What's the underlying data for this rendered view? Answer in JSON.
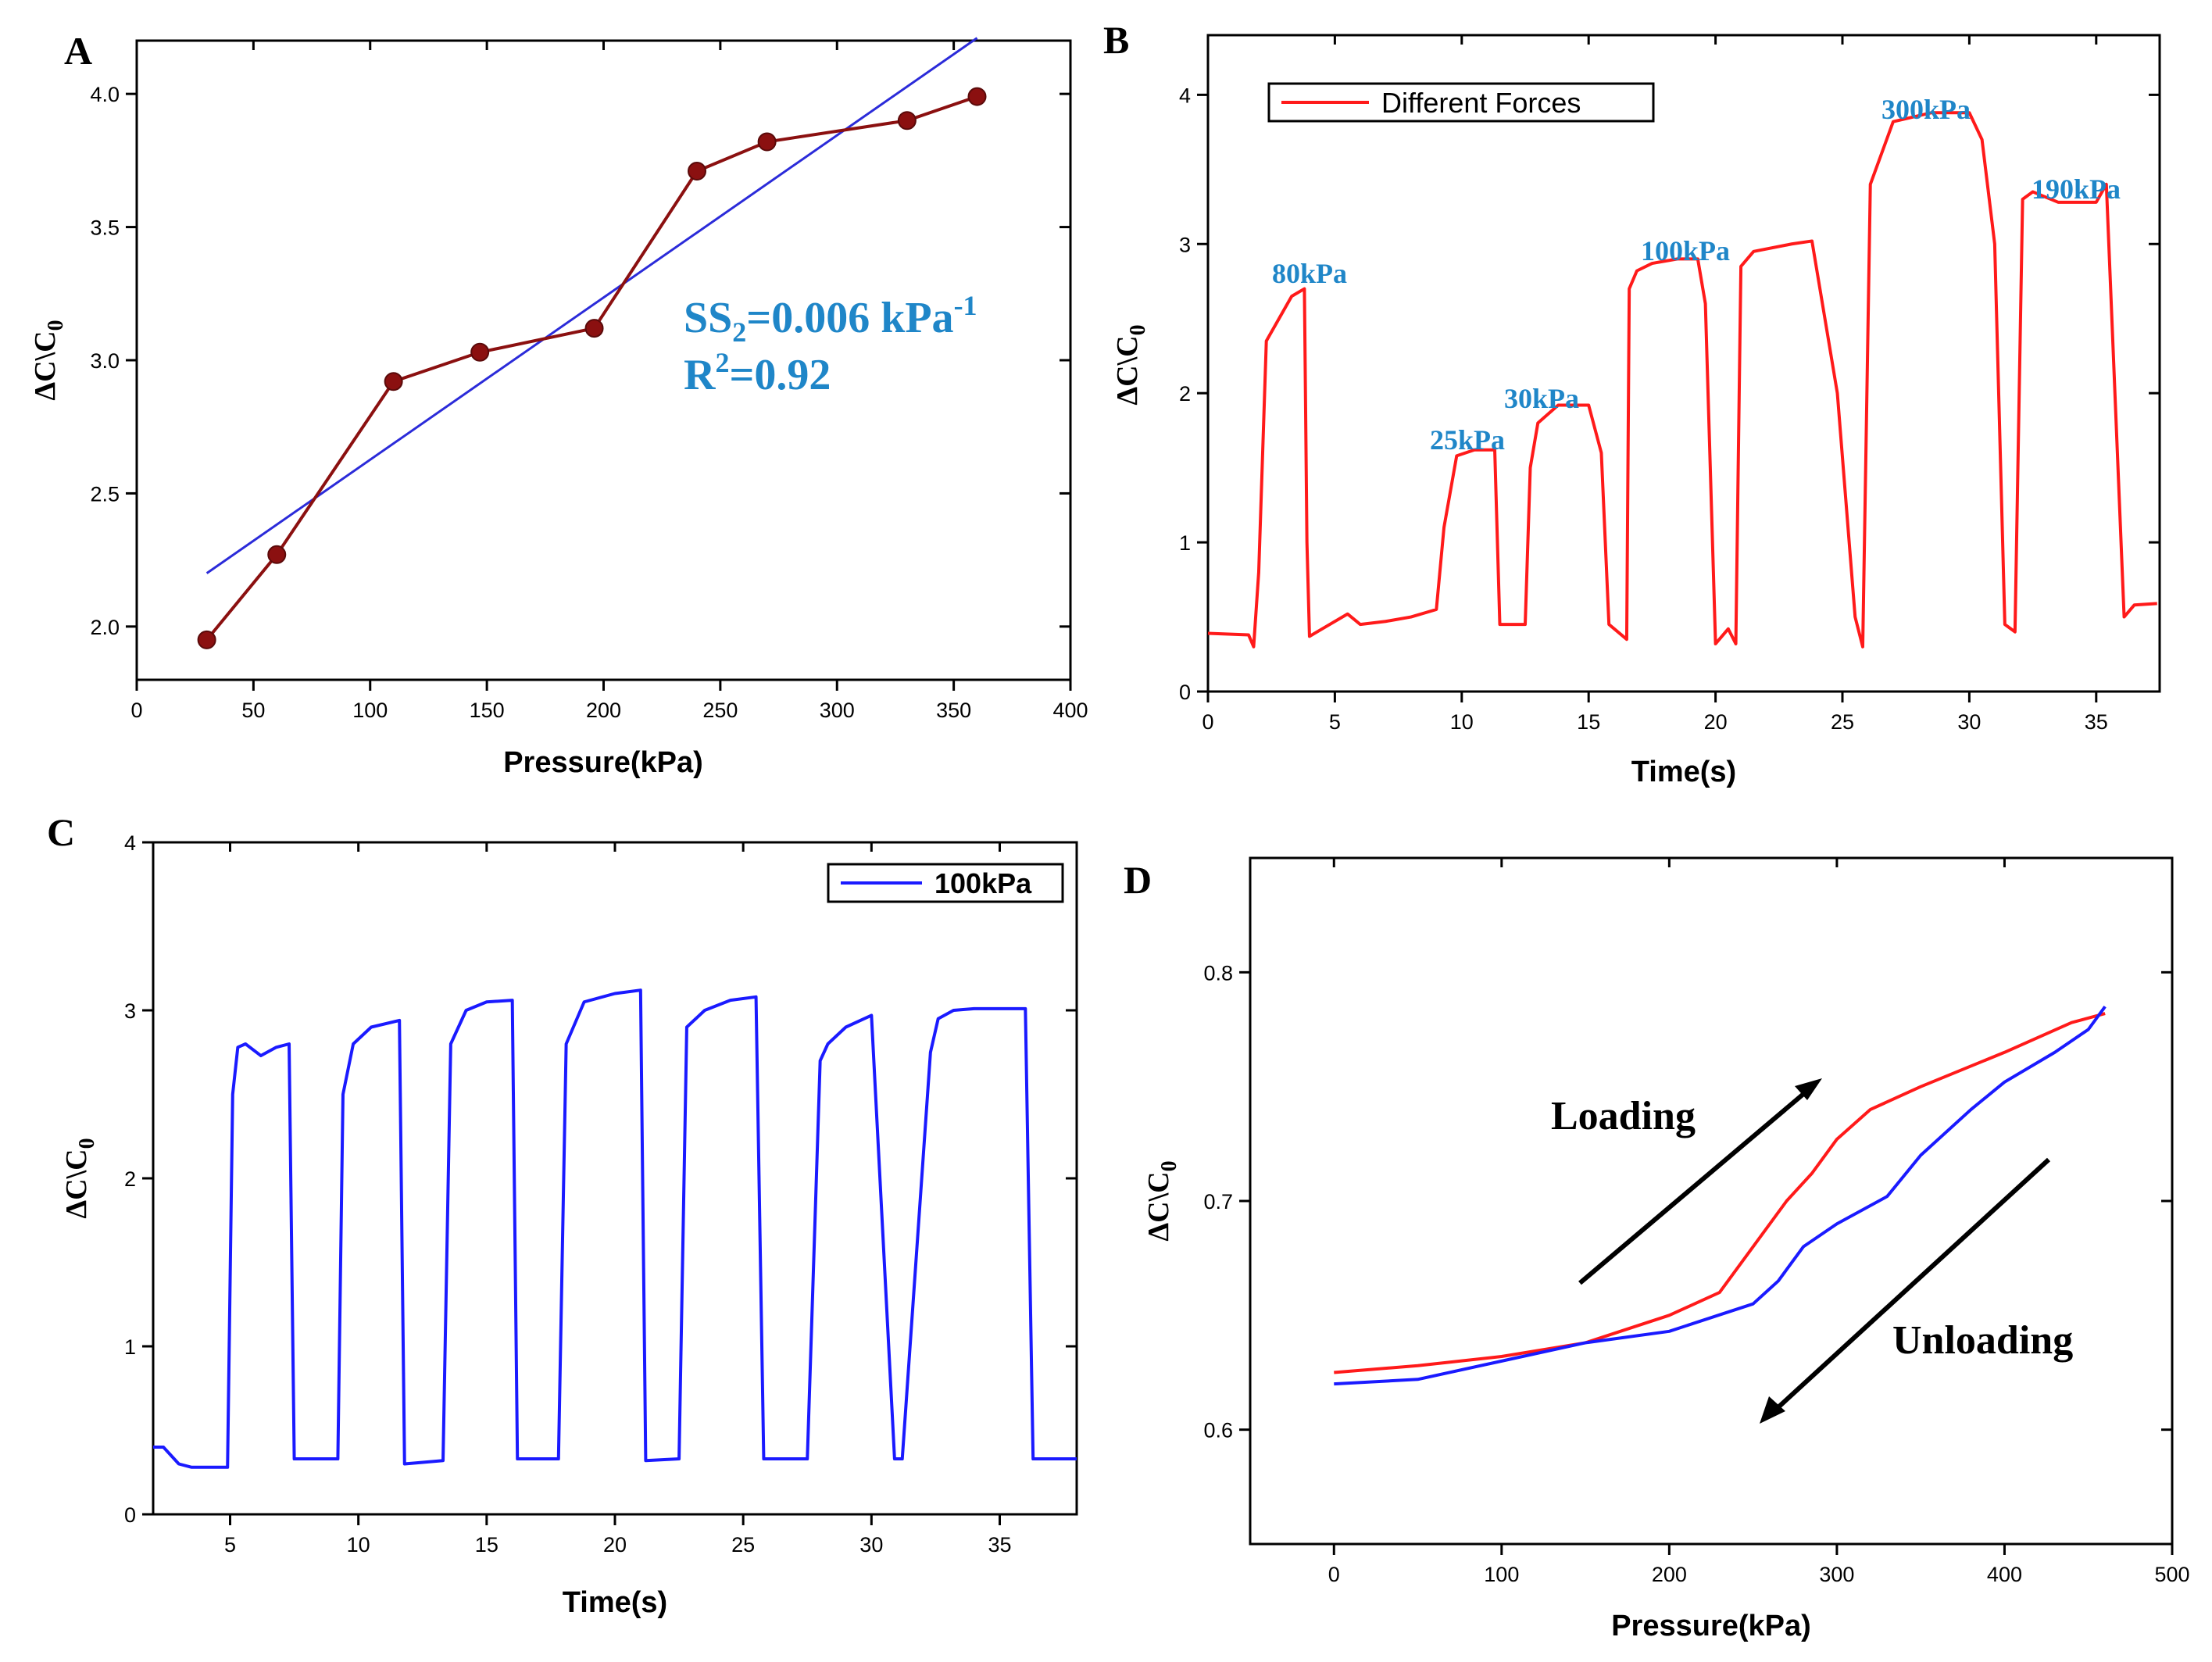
{
  "chart_data": [
    {
      "panel": "A",
      "type": "scatter",
      "xlabel": "Pressure(kPa)",
      "ylabel": "ΔC\\C",
      "ylabel_sub": "0",
      "xlim": [
        0,
        400
      ],
      "ylim": [
        1.8,
        4.2
      ],
      "xticks": [
        0,
        50,
        100,
        150,
        200,
        250,
        300,
        350,
        400
      ],
      "yticks": [
        2.0,
        2.5,
        3.0,
        3.5,
        4.0
      ],
      "series": [
        {
          "name": "data",
          "color": "#8b1010",
          "x": [
            30,
            60,
            110,
            147,
            196,
            240,
            270,
            330,
            360
          ],
          "y": [
            1.95,
            2.27,
            2.92,
            3.03,
            3.12,
            3.71,
            3.82,
            3.9,
            3.99
          ]
        },
        {
          "name": "fit",
          "color": "#2b2bd9",
          "x": [
            30,
            360
          ],
          "y": [
            2.2,
            4.21
          ]
        }
      ],
      "annotations": [
        "SS",
        "2",
        "=0.006 kPa",
        "-1",
        "R",
        "2",
        "=0.92"
      ]
    },
    {
      "panel": "B",
      "type": "line",
      "xlabel": "Time(s)",
      "ylabel": "ΔC\\C",
      "ylabel_sub": "0",
      "xlim": [
        0,
        37.5
      ],
      "ylim": [
        0,
        4.4
      ],
      "xticks": [
        0,
        5,
        10,
        15,
        20,
        25,
        30,
        35
      ],
      "yticks": [
        0,
        1,
        2,
        3,
        4
      ],
      "legend": "Different Forces",
      "series": [
        {
          "name": "Different Forces",
          "color": "#ff1a1a",
          "x": [
            0,
            1.6,
            1.8,
            2.0,
            2.3,
            2.8,
            3.3,
            3.8,
            3.9,
            4.0,
            4.5,
            5.5,
            6.0,
            7.0,
            8.0,
            9.0,
            9.3,
            9.8,
            10.5,
            11.3,
            11.5,
            12.5,
            12.7,
            13.0,
            13.8,
            15.0,
            15.5,
            15.8,
            16.5,
            16.6,
            16.9,
            17.5,
            18.5,
            19.3,
            19.6,
            20.0,
            20.5,
            20.8,
            21.0,
            21.5,
            23.0,
            23.8,
            24.8,
            25.5,
            25.8,
            26.1,
            27.0,
            28.5,
            30.0,
            30.5,
            31.0,
            31.4,
            31.8,
            32.1,
            32.5,
            33.5,
            35.0,
            35.4,
            36.1,
            36.5,
            37.4
          ],
          "y": [
            0.39,
            0.38,
            0.3,
            0.8,
            2.35,
            2.5,
            2.65,
            2.7,
            1.0,
            0.37,
            0.42,
            0.52,
            0.45,
            0.47,
            0.5,
            0.55,
            1.1,
            1.58,
            1.62,
            1.62,
            0.45,
            0.45,
            1.5,
            1.8,
            1.92,
            1.92,
            1.6,
            0.45,
            0.35,
            2.7,
            2.82,
            2.87,
            2.9,
            2.9,
            2.6,
            0.32,
            0.42,
            0.32,
            2.85,
            2.95,
            3.0,
            3.02,
            2.0,
            0.5,
            0.3,
            3.4,
            3.82,
            3.88,
            3.88,
            3.7,
            3.0,
            0.45,
            0.4,
            3.3,
            3.35,
            3.28,
            3.28,
            3.4,
            0.5,
            0.58,
            0.59
          ]
        }
      ],
      "annotations": [
        "80kPa",
        "25kPa",
        "30kPa",
        "100kPa",
        "300kPa",
        "190kPa"
      ]
    },
    {
      "panel": "C",
      "type": "line",
      "xlabel": "Time(s)",
      "ylabel": "ΔC\\C",
      "ylabel_sub": "0",
      "xlim": [
        2,
        38
      ],
      "ylim": [
        0,
        4
      ],
      "xticks": [
        5,
        10,
        15,
        20,
        25,
        30,
        35
      ],
      "yticks": [
        0,
        1,
        2,
        3,
        4
      ],
      "legend": "100kPa",
      "series": [
        {
          "name": "100kPa",
          "color": "#1a1aff",
          "x": [
            2,
            2.4,
            3.0,
            3.5,
            4.0,
            4.5,
            4.9,
            5.1,
            5.3,
            5.6,
            6.2,
            6.8,
            7.3,
            7.5,
            9.2,
            9.4,
            9.8,
            10.5,
            11.6,
            11.8,
            13.3,
            13.6,
            14.2,
            15.0,
            16.0,
            16.2,
            17.8,
            18.1,
            18.8,
            20.0,
            21.0,
            21.2,
            22.5,
            22.8,
            23.5,
            24.5,
            25.5,
            25.8,
            27.5,
            28.0,
            28.3,
            29.0,
            30.0,
            30.9,
            31.2,
            32.3,
            32.6,
            33.2,
            34.0,
            36.0,
            36.3,
            38.0
          ],
          "y": [
            0.4,
            0.4,
            0.3,
            0.28,
            0.28,
            0.28,
            0.28,
            2.5,
            2.78,
            2.8,
            2.73,
            2.78,
            2.8,
            0.33,
            0.33,
            2.5,
            2.8,
            2.9,
            2.94,
            0.3,
            0.32,
            2.8,
            3.0,
            3.05,
            3.06,
            0.33,
            0.33,
            2.8,
            3.05,
            3.1,
            3.12,
            0.32,
            0.33,
            2.9,
            3.0,
            3.06,
            3.08,
            0.33,
            0.33,
            2.7,
            2.8,
            2.9,
            2.97,
            0.33,
            0.33,
            2.75,
            2.95,
            3.0,
            3.01,
            3.01,
            0.33,
            0.33
          ]
        }
      ]
    },
    {
      "panel": "D",
      "type": "line",
      "xlabel": "Pressure(kPa)",
      "ylabel": "ΔC\\C",
      "ylabel_sub": "0",
      "xlim": [
        -50,
        500
      ],
      "ylim": [
        0.55,
        0.85
      ],
      "xticks": [
        0,
        100,
        200,
        300,
        400,
        500
      ],
      "yticks": [
        0.6,
        0.7,
        0.8
      ],
      "series": [
        {
          "name": "Loading",
          "color": "#ff1a1a",
          "x": [
            0,
            50,
            100,
            150,
            200,
            230,
            250,
            270,
            285,
            300,
            320,
            350,
            400,
            440,
            460
          ],
          "y": [
            0.625,
            0.628,
            0.632,
            0.638,
            0.65,
            0.66,
            0.68,
            0.7,
            0.712,
            0.727,
            0.74,
            0.75,
            0.765,
            0.778,
            0.782
          ]
        },
        {
          "name": "Unloading",
          "color": "#1a1aff",
          "x": [
            0,
            50,
            100,
            150,
            200,
            250,
            265,
            280,
            300,
            330,
            350,
            380,
            400,
            430,
            450,
            460
          ],
          "y": [
            0.62,
            0.622,
            0.63,
            0.638,
            0.643,
            0.655,
            0.665,
            0.68,
            0.69,
            0.702,
            0.72,
            0.74,
            0.752,
            0.765,
            0.775,
            0.785
          ]
        }
      ],
      "annotations": [
        "Loading",
        "Unloading"
      ]
    }
  ]
}
